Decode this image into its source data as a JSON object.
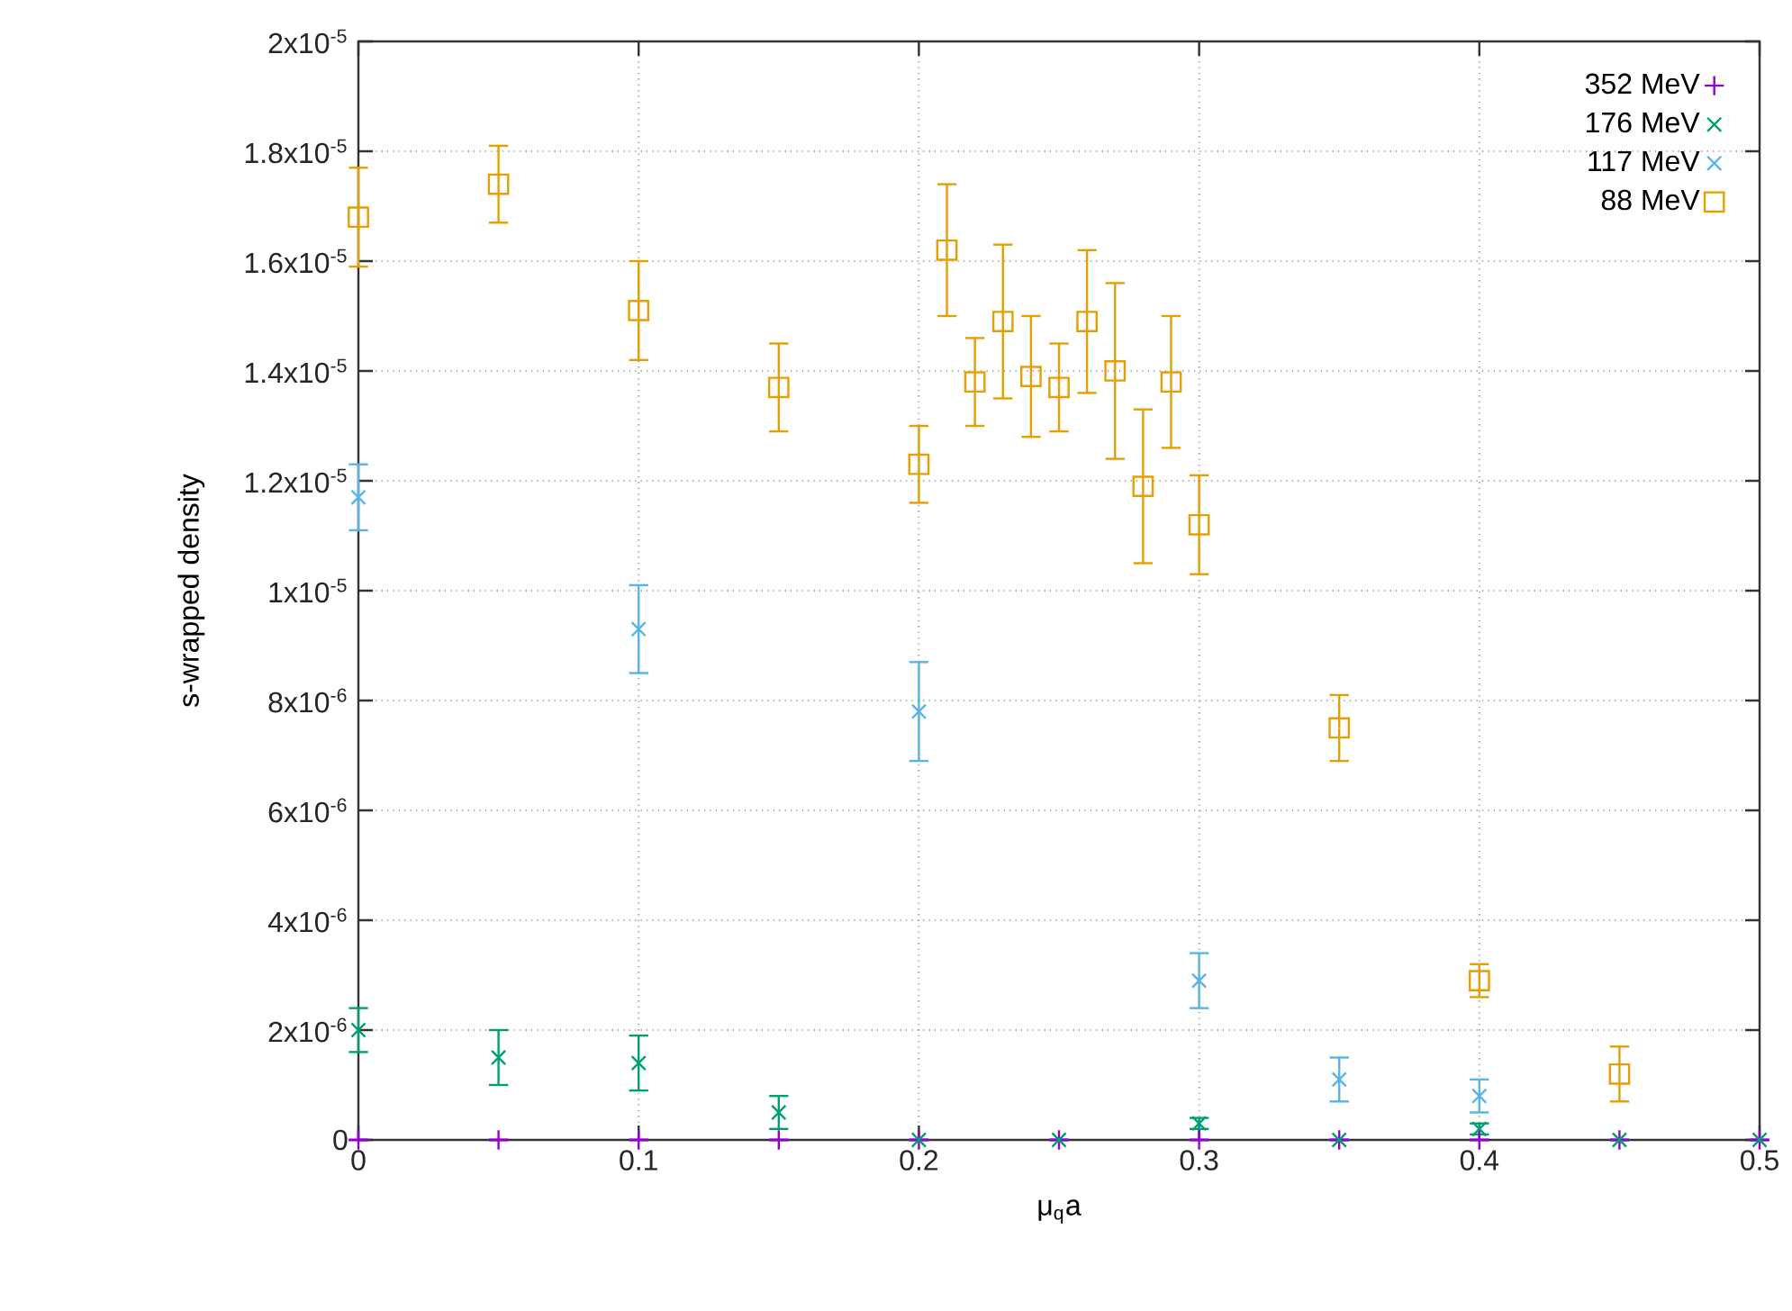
{
  "chart_data": {
    "type": "scatter",
    "xlabel": "μ$_{q}$a",
    "ylabel": "s-wrapped density",
    "xlim": [
      0,
      0.5
    ],
    "xticks": [
      0,
      0.1,
      0.2,
      0.3,
      0.4,
      0.5
    ],
    "ylim": [
      0,
      2e-05
    ],
    "yticks": [
      0,
      {
        "value": 2e-06,
        "label": "2x10$^{-6}$"
      },
      {
        "value": 4e-06,
        "label": "4x10$^{-6}$"
      },
      {
        "value": 6e-06,
        "label": "6x10$^{-6}$"
      },
      {
        "value": 8e-06,
        "label": "8x10$^{-6}$"
      },
      {
        "value": 1e-05,
        "label": "1x10$^{-5}$"
      },
      {
        "value": 1.2e-05,
        "label": "1.2x10$^{-5}$"
      },
      {
        "value": 1.4e-05,
        "label": "1.4x10$^{-5}$"
      },
      {
        "value": 1.6e-05,
        "label": "1.6x10$^{-5}$"
      },
      {
        "value": 1.8e-05,
        "label": "1.8x10$^{-5}$"
      },
      {
        "value": 2e-05,
        "label": "2x10$^{-5}$"
      }
    ],
    "grid": true,
    "legend": "top right",
    "series": [
      {
        "name": "352 MeV",
        "color": "#9400d3",
        "x": [
          0,
          0.05,
          0.1,
          0.15,
          0.2,
          0.25,
          0.3,
          0.35,
          0.4,
          0.45,
          0.5
        ],
        "values": [
          0,
          0,
          0,
          0,
          0,
          0,
          0,
          0,
          0,
          0,
          0
        ]
      },
      {
        "name": "176 MeV",
        "color": "#009e73",
        "marker": "cross",
        "x": [
          0,
          0.05,
          0.1,
          0.15,
          0.2,
          0.25,
          0.3,
          0.35,
          0.4,
          0.45,
          0.5
        ],
        "values": [
          2e-06,
          1.5e-06,
          1.4e-06,
          5e-07,
          0,
          0,
          3e-07,
          0,
          2e-07,
          0,
          0
        ],
        "errors": [
          4e-07,
          5e-07,
          5e-07,
          3e-07,
          null,
          null,
          1e-07,
          null,
          1e-07,
          null,
          null
        ]
      },
      {
        "name": "117 MeV",
        "color": "#56b4e9",
        "marker": "cross",
        "x": [
          0,
          0.1,
          0.2,
          0.3,
          0.35,
          0.4
        ],
        "values": [
          1.17e-05,
          9.3e-06,
          7.8e-06,
          2.9e-06,
          1.1e-06,
          8e-07
        ],
        "errors": [
          6e-07,
          8e-07,
          9e-07,
          5e-07,
          4e-07,
          3e-07
        ]
      },
      {
        "name": "88 MeV",
        "color": "#e69f00",
        "marker": "square",
        "x": [
          0,
          0.05,
          0.1,
          0.15,
          0.2,
          0.21,
          0.22,
          0.23,
          0.24,
          0.25,
          0.26,
          0.27,
          0.28,
          0.29,
          0.3,
          0.35,
          0.4,
          0.45
        ],
        "values": [
          1.68e-05,
          1.74e-05,
          1.51e-05,
          1.37e-05,
          1.23e-05,
          1.62e-05,
          1.38e-05,
          1.49e-05,
          1.39e-05,
          1.37e-05,
          1.49e-05,
          1.4e-05,
          1.19e-05,
          1.38e-05,
          1.12e-05,
          7.5e-06,
          2.9e-06,
          1.2e-06
        ],
        "errors": [
          9e-07,
          7e-07,
          9e-07,
          8e-07,
          7e-07,
          1.2e-06,
          8e-07,
          1.4e-06,
          1.1e-06,
          8e-07,
          1.3e-06,
          1.6e-06,
          1.4e-06,
          1.2e-06,
          9e-07,
          6e-07,
          3e-07,
          5e-07
        ]
      }
    ]
  }
}
